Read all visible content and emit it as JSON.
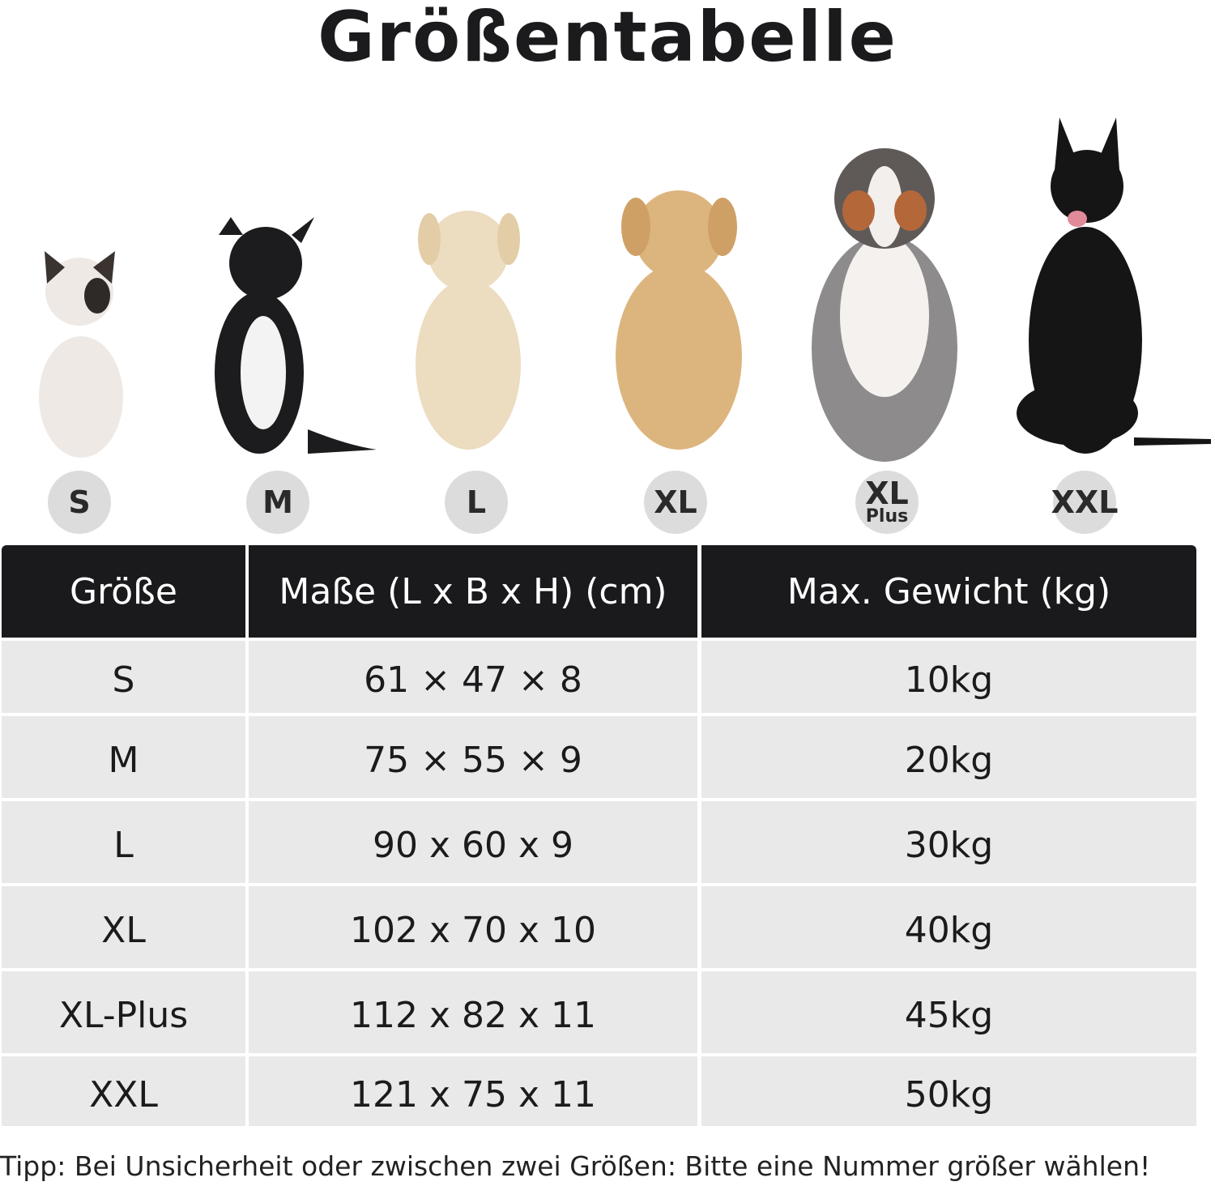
{
  "title": "Größentabelle",
  "badges": [
    [
      "S"
    ],
    [
      "M"
    ],
    [
      "L"
    ],
    [
      "XL"
    ],
    [
      "XL",
      "Plus"
    ],
    [
      "XXL"
    ]
  ],
  "table": {
    "header": [
      "Größe",
      "Maße (L x B x H) (cm)",
      "Max. Gewicht (kg)"
    ],
    "rows": [
      [
        "S",
        "61 × 47 × 8",
        "10kg"
      ],
      [
        "M",
        "75 × 55 × 9",
        "20kg"
      ],
      [
        "L",
        "90 x 60 x 9",
        "30kg"
      ],
      [
        "XL",
        "102 x 70 x 10",
        "40kg"
      ],
      [
        "XL-Plus",
        "112 x 82 x 11",
        "45kg"
      ],
      [
        "XXL",
        "121 x 75 x 11",
        "50kg"
      ]
    ]
  },
  "tip": "Tipp: Bei Unsicherheit oder zwischen zwei Größen: Bitte eine Nummer größer wählen!"
}
